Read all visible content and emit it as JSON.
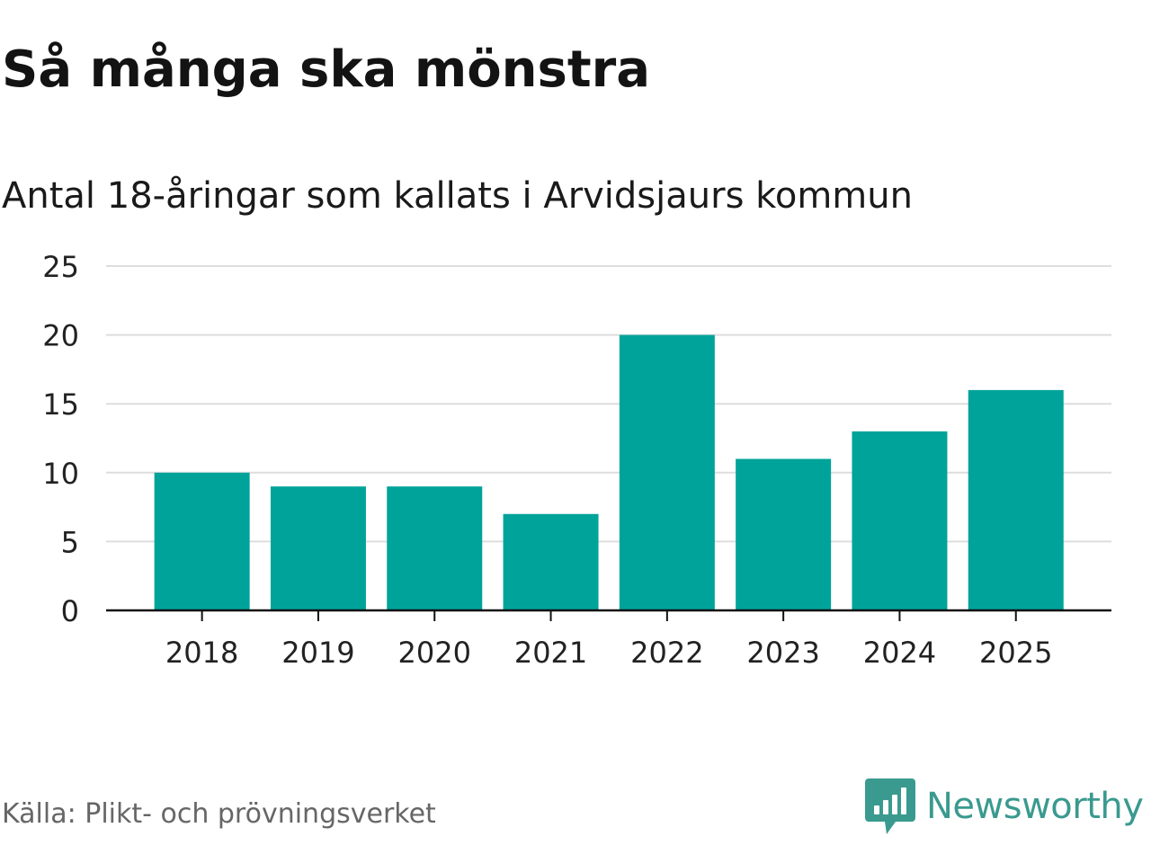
{
  "title": "Så många ska mönstra",
  "subtitle": "Antal 18-åringar som kallats i Arvidsjaurs kommun",
  "source": "Källa: Plikt- och prövningsverket",
  "brand": {
    "name": "Newsworthy",
    "icon": "newsworthy-logo-icon",
    "color": "#3a9a8f"
  },
  "colors": {
    "bar": "#00a39a",
    "grid": "#dddddd",
    "axis": "#111111"
  },
  "chart_data": {
    "type": "bar",
    "categories": [
      "2018",
      "2019",
      "2020",
      "2021",
      "2022",
      "2023",
      "2024",
      "2025"
    ],
    "values": [
      10,
      9,
      9,
      7,
      20,
      11,
      13,
      16
    ],
    "yticks": [
      0,
      5,
      10,
      15,
      20,
      25
    ],
    "ylim": [
      0,
      25
    ],
    "grid": true,
    "legend": "none"
  }
}
